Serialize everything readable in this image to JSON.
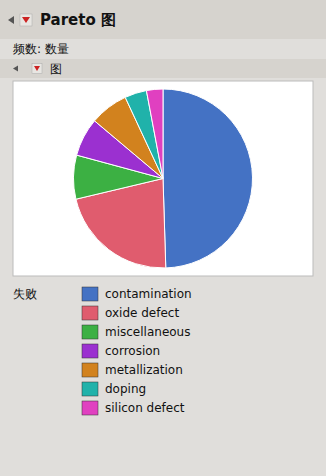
{
  "chart_data": {
    "type": "pie",
    "title": "Pareto 图",
    "subtitle": "频数: 数量",
    "annotations": [
      "图"
    ],
    "legend_title": "失败",
    "categories": [
      "contamination",
      "oxide defect",
      "miscellaneous",
      "corrosion",
      "metallization",
      "doping",
      "silicon defect"
    ],
    "values": [
      50,
      22,
      8,
      7,
      7,
      4,
      3
    ],
    "colors": [
      "#4472C4",
      "#E05C6E",
      "#3CB043",
      "#9B30D0",
      "#D2821E",
      "#20B2AA",
      "#E040C0"
    ],
    "legend": "bottom"
  }
}
